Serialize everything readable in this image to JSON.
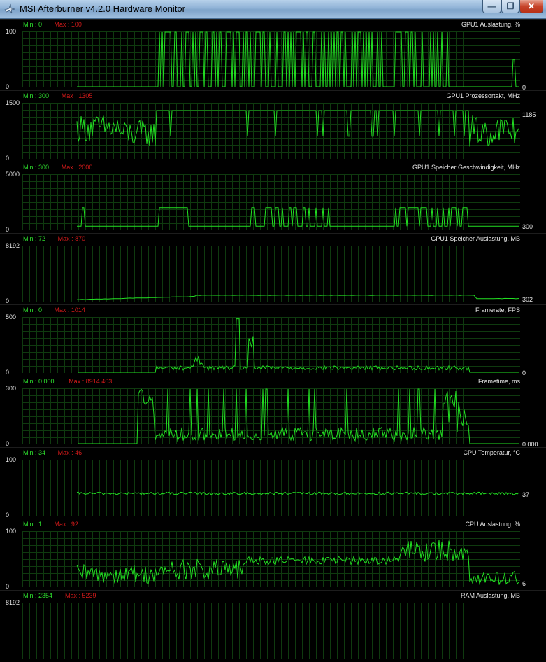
{
  "window": {
    "title": "MSI Afterburner v4.2.0 Hardware Monitor",
    "icons": [
      "afterburner-plane-icon",
      "minimize-icon",
      "maximize-icon",
      "close-icon"
    ],
    "min_glyph": "—",
    "max_glyph": "❐",
    "close_glyph": "✕"
  },
  "colors": {
    "line": "#22e022",
    "grid": "#0f3a0f",
    "min": "#2ee02e",
    "max": "#d21a1a",
    "background": "#000000"
  },
  "graphs": [
    {
      "name": "GPU1 Auslastung, %",
      "min_label": "Min : 0",
      "max_label": "Max : 100",
      "axis_top": "100",
      "axis_bottom": "0",
      "current": "0",
      "range": [
        0,
        100
      ],
      "current_value": 0
    },
    {
      "name": "GPU1 Prozessortakt, MHz",
      "min_label": "Min : 300",
      "max_label": "Max : 1305",
      "axis_top": "1500",
      "axis_bottom": "0",
      "current": "1185",
      "range": [
        0,
        1500
      ],
      "current_value": 1185
    },
    {
      "name": "GPU1 Speicher Geschwindigkeit, MHz",
      "min_label": "Min : 300",
      "max_label": "Max : 2000",
      "axis_top": "5000",
      "axis_bottom": "0",
      "current": "300",
      "range": [
        0,
        5000
      ],
      "current_value": 300
    },
    {
      "name": "GPU1 Speicher Auslastung, MB",
      "min_label": "Min : 72",
      "max_label": "Max : 870",
      "axis_top": "8192",
      "axis_bottom": "0",
      "current": "302",
      "range": [
        0,
        8192
      ],
      "current_value": 302
    },
    {
      "name": "Framerate, FPS",
      "min_label": "Min : 0",
      "max_label": "Max : 1014",
      "axis_top": "500",
      "axis_bottom": "0",
      "current": "0",
      "range": [
        0,
        500
      ],
      "current_value": 0
    },
    {
      "name": "Frametime, ms",
      "min_label": "Min : 0.000",
      "max_label": "Max : 8914.463",
      "axis_top": "300",
      "axis_bottom": "0",
      "current": "0.000",
      "range": [
        0,
        300
      ],
      "current_value": 0
    },
    {
      "name": "CPU Temperatur, °C",
      "min_label": "Min : 34",
      "max_label": "Max : 46",
      "axis_top": "100",
      "axis_bottom": "0",
      "current": "37",
      "range": [
        0,
        100
      ],
      "current_value": 37
    },
    {
      "name": "CPU Auslastung, %",
      "min_label": "Min : 1",
      "max_label": "Max : 92",
      "axis_top": "100",
      "axis_bottom": "0",
      "current": "6",
      "range": [
        0,
        100
      ],
      "current_value": 6
    },
    {
      "name": "RAM Auslastung, MB",
      "min_label": "Min : 2354",
      "max_label": "Max : 5239",
      "axis_top": "8192",
      "axis_bottom": "",
      "current": "",
      "range": [
        0,
        8192
      ],
      "current_value": null
    }
  ]
}
